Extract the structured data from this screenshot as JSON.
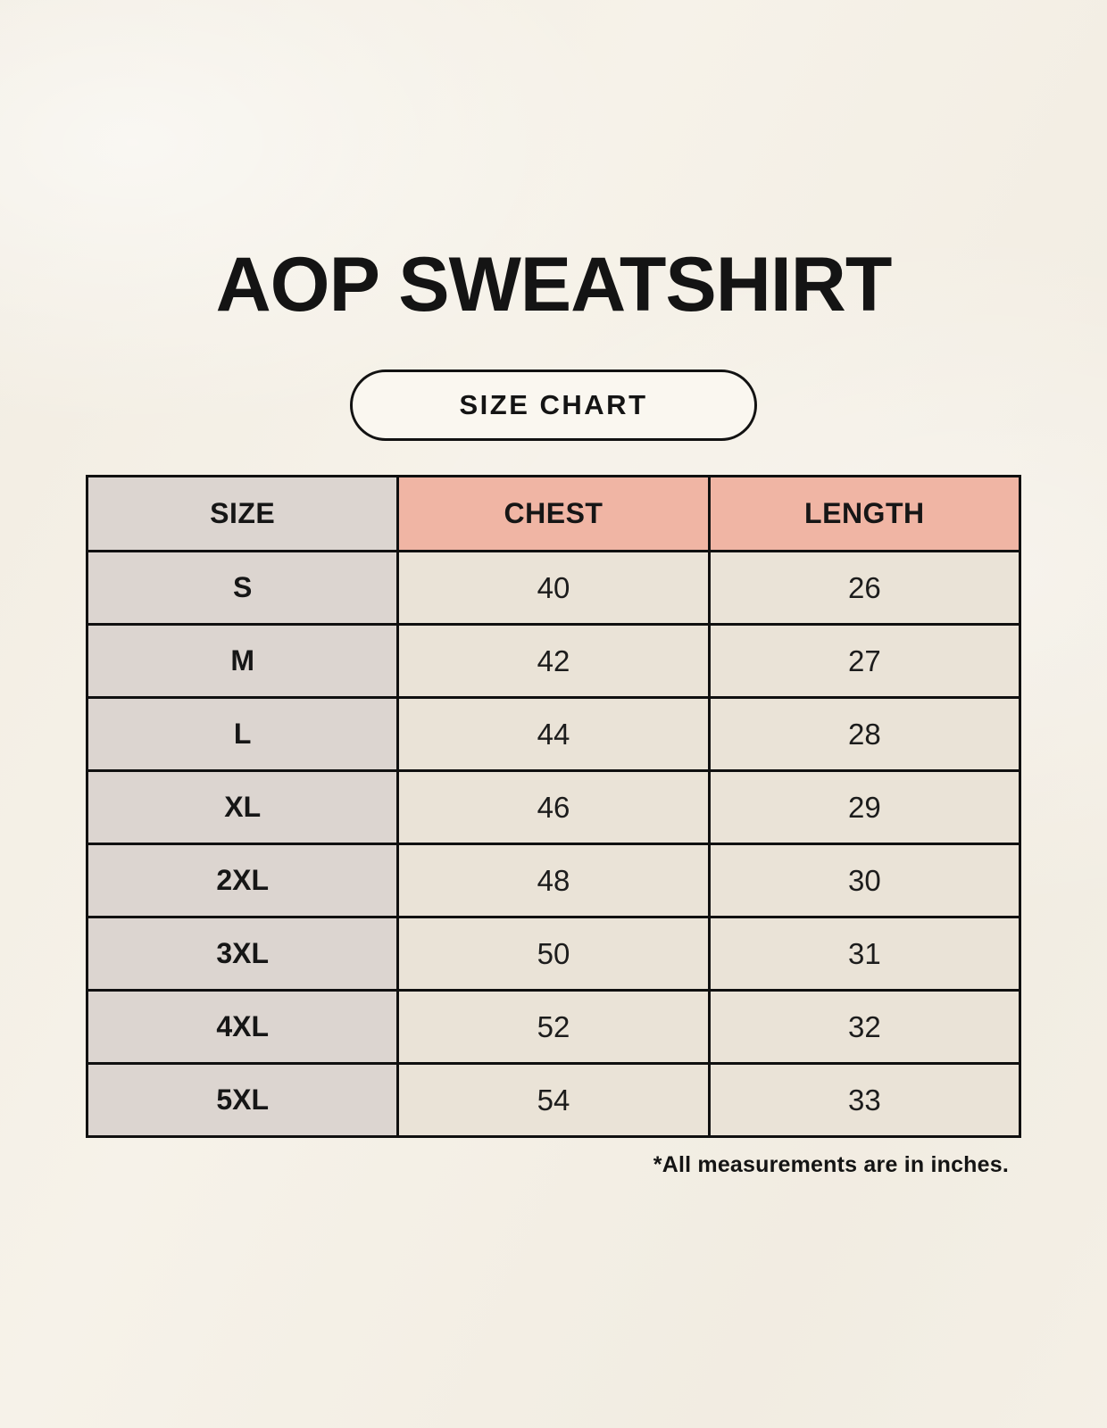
{
  "page": {
    "title": "AOP SWEATSHIRT",
    "badge_label": "SIZE CHART",
    "footnote": "*All measurements are in inches."
  },
  "chart_data": {
    "type": "table",
    "title": "AOP SWEATSHIRT",
    "subtitle": "SIZE CHART",
    "columns": [
      "SIZE",
      "CHEST",
      "LENGTH"
    ],
    "units_note": "*All measurements are in inches.",
    "rows": [
      {
        "size": "S",
        "chest": "40",
        "length": "26"
      },
      {
        "size": "M",
        "chest": "42",
        "length": "27"
      },
      {
        "size": "L",
        "chest": "44",
        "length": "28"
      },
      {
        "size": "XL",
        "chest": "46",
        "length": "29"
      },
      {
        "size": "2XL",
        "chest": "48",
        "length": "30"
      },
      {
        "size": "3XL",
        "chest": "50",
        "length": "31"
      },
      {
        "size": "4XL",
        "chest": "52",
        "length": "32"
      },
      {
        "size": "5XL",
        "chest": "54",
        "length": "33"
      }
    ]
  },
  "colors": {
    "background": "#F6F2E9",
    "header_accent": "#F0B5A4",
    "size_column_bg": "#DCD5D0",
    "cell_bg": "#EAE3D7",
    "border": "#101010",
    "text": "#161616"
  }
}
